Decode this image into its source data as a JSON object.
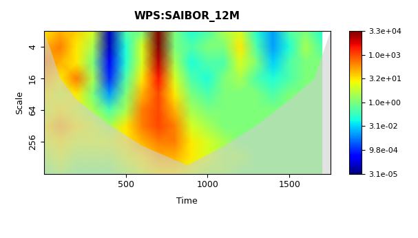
{
  "chart_data": {
    "type": "heatmap",
    "title": "WPS:SAIBOR_12M",
    "x_label": "Time",
    "y_label": "Scale",
    "x": [
      0,
      100,
      200,
      300,
      400,
      500,
      600,
      700,
      800,
      900,
      1000,
      1100,
      1200,
      1300,
      1400,
      1500,
      1600,
      1700
    ],
    "scales": [
      2,
      4,
      8,
      16,
      32,
      64,
      128,
      256,
      512,
      1024
    ],
    "power": [
      [
        30,
        100,
        50,
        10,
        0.0001,
        0.3,
        1,
        30000,
        1,
        0.1,
        0.3,
        3,
        10,
        0.1,
        0.01,
        0.3,
        1,
        0.1
      ],
      [
        100,
        300,
        30,
        3,
        0.0001,
        0.1,
        10,
        30000,
        1,
        0.3,
        1,
        1,
        30,
        0.3,
        0.01,
        0.1,
        3,
        0.3
      ],
      [
        300,
        100,
        30,
        1,
        0.0003,
        0.1,
        10,
        10000,
        3,
        0.1,
        0.3,
        0.3,
        10,
        1,
        0.03,
        0.3,
        1,
        1
      ],
      [
        100,
        30,
        300,
        3,
        0.001,
        0.3,
        30,
        3000,
        10,
        0.3,
        0.1,
        1,
        3,
        0.3,
        0.1,
        0.3,
        1,
        1
      ],
      [
        30,
        10,
        30,
        1,
        0.01,
        1,
        100,
        1000,
        30,
        1,
        0.3,
        1,
        1,
        1,
        0.3,
        1,
        1,
        1
      ],
      [
        10,
        30,
        10,
        3,
        0.3,
        3,
        300,
        1000,
        100,
        3,
        1,
        1,
        1,
        1,
        1,
        1,
        1,
        1
      ],
      [
        30,
        100,
        30,
        10,
        3,
        30,
        300,
        1000,
        300,
        10,
        3,
        1,
        1,
        1,
        1,
        1,
        1,
        1
      ],
      [
        10,
        30,
        10,
        10,
        10,
        30,
        100,
        300,
        300,
        30,
        10,
        3,
        1,
        1,
        1,
        1,
        1,
        1
      ],
      [
        3,
        10,
        3,
        3,
        3,
        10,
        30,
        100,
        100,
        30,
        10,
        3,
        3,
        1,
        1,
        1,
        1,
        1
      ],
      [
        1,
        3,
        1,
        1,
        1,
        3,
        10,
        30,
        30,
        10,
        3,
        3,
        1,
        1,
        1,
        1,
        1,
        1
      ]
    ],
    "coi": {
      "x": [
        0,
        100,
        200,
        400,
        600,
        875,
        1100,
        1300,
        1500,
        1650,
        1750
      ],
      "scale": [
        2,
        16,
        40,
        120,
        300,
        700,
        300,
        120,
        40,
        16,
        2
      ]
    },
    "xlim": [
      0,
      1750
    ],
    "xticks": [
      500,
      1000,
      1500
    ],
    "ylim": [
      2,
      1024
    ],
    "yticks": [
      4,
      16,
      64,
      256
    ],
    "log": "y",
    "colorbar_range": [
      3.0517578125e-05,
      32768
    ],
    "colorbar_ticks": [
      {
        "value": 32768,
        "label": "3.3e+04"
      },
      {
        "value": 1024,
        "label": "1.0e+03"
      },
      {
        "value": 32,
        "label": "3.2e+01"
      },
      {
        "value": 1,
        "label": "1.0e+00"
      },
      {
        "value": 0.03125,
        "label": "3.1e-02"
      },
      {
        "value": 0.0009765625,
        "label": "9.8e-04"
      },
      {
        "value": 3.0517578125e-05,
        "label": "3.1e-05"
      }
    ]
  }
}
